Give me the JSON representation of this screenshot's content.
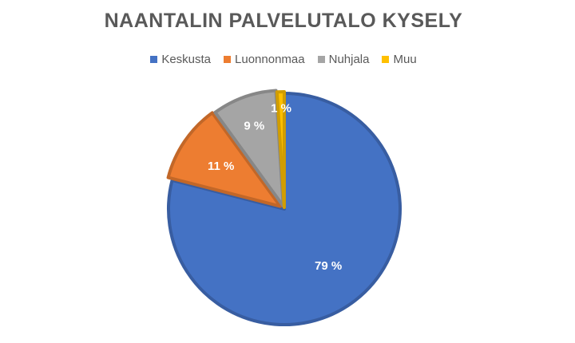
{
  "chart_data": {
    "type": "pie",
    "title": "NAANTALIN PALVELUTALO KYSELY",
    "categories": [
      "Keskusta",
      "Luonnonmaa",
      "Nuhjala",
      "Muu"
    ],
    "values": [
      79,
      11,
      9,
      1
    ],
    "value_labels": [
      "79 %",
      "11 %",
      "9 %",
      "1 %"
    ],
    "colors": [
      "#4472C4",
      "#ED7D31",
      "#A5A5A5",
      "#FFC000"
    ],
    "legend_position": "top",
    "start_angle": "12 o'clock, clockwise"
  }
}
